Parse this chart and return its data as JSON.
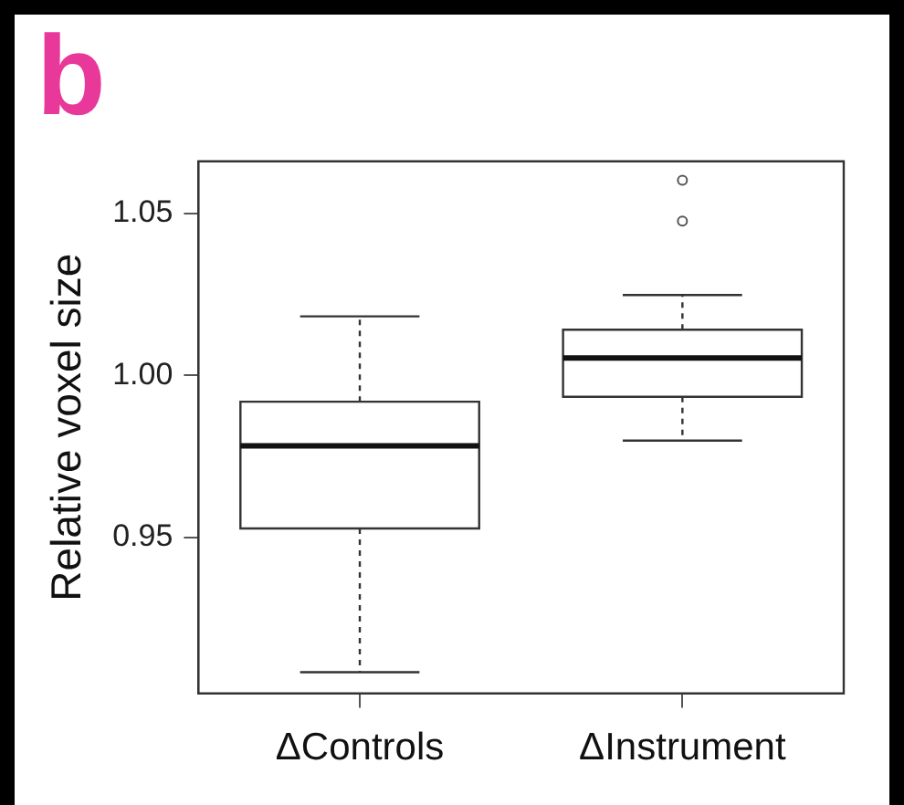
{
  "chart_data": {
    "type": "box",
    "title": "b",
    "ylabel": "Relative voxel size",
    "categories": [
      "ΔControls",
      "ΔInstrument"
    ],
    "boxes": [
      {
        "low": 0.9085,
        "q1": 0.9528,
        "median": 0.9783,
        "q3": 0.9919,
        "high": 1.0182
      },
      {
        "low": 0.9799,
        "q1": 0.9934,
        "median": 1.0054,
        "q3": 1.0141,
        "high": 1.0248,
        "outliers": [
          1.0476,
          1.0602
        ]
      }
    ],
    "ylim": [
      0.902,
      1.066
    ],
    "yticks": [
      0.95,
      {
        "value": 1,
        "label": "1.00"
      },
      1.05
    ],
    "grid": false
  }
}
